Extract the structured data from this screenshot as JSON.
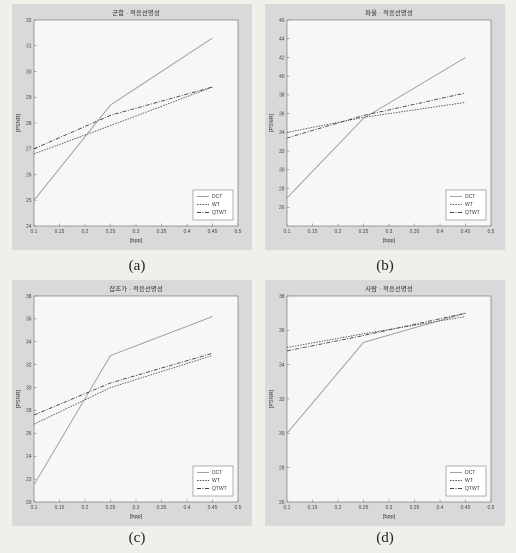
{
  "captions": [
    "(a)",
    "(b)",
    "(c)",
    "(d)"
  ],
  "chart_data": [
    {
      "type": "line",
      "title": "군함 · 적응선명성",
      "xlabel": "[bpp]",
      "ylabel": "[PSNR]",
      "xlim": [
        0.1,
        0.5
      ],
      "ylim": [
        24,
        32
      ],
      "xticks": [
        "0.1",
        "0.15",
        "0.2",
        "0.25",
        "0.3",
        "0.35",
        "0.4",
        "0.45",
        "0.5"
      ],
      "yticks": [
        "24",
        "25",
        "26",
        "27",
        "28",
        "29",
        "30",
        "31",
        "32"
      ],
      "x": [
        0.1,
        0.25,
        0.45
      ],
      "series": [
        {
          "name": "DCT",
          "values": [
            25.0,
            28.7,
            31.3
          ],
          "color": "#999999",
          "dash": "none"
        },
        {
          "name": "WT",
          "values": [
            26.8,
            27.9,
            29.4
          ],
          "color": "#555555",
          "dash": "1.5,1.2"
        },
        {
          "name": "QTWT",
          "values": [
            27.0,
            28.3,
            29.4
          ],
          "color": "#444444",
          "dash": "4,1.5,1,1.5"
        }
      ],
      "legend": "bottom-right"
    },
    {
      "type": "line",
      "title": "파울 · 적응선명성",
      "xlabel": "[bpp]",
      "ylabel": "[PSNR]",
      "xlim": [
        0.1,
        0.5
      ],
      "ylim": [
        24,
        46
      ],
      "xticks": [
        "0.1",
        "0.15",
        "0.2",
        "0.25",
        "0.3",
        "0.35",
        "0.4",
        "0.45",
        "0.5"
      ],
      "yticks": [
        "26",
        "28",
        "30",
        "32",
        "34",
        "36",
        "38",
        "40",
        "42",
        "44",
        "46"
      ],
      "x": [
        0.1,
        0.25,
        0.45
      ],
      "series": [
        {
          "name": "DCT",
          "values": [
            27.0,
            35.5,
            42.0
          ],
          "color": "#999999",
          "dash": "none"
        },
        {
          "name": "WT",
          "values": [
            34.0,
            35.6,
            37.2
          ],
          "color": "#555555",
          "dash": "1.5,1.2"
        },
        {
          "name": "QTWT",
          "values": [
            33.4,
            35.8,
            38.2
          ],
          "color": "#444444",
          "dash": "4,1.5,1,1.5"
        }
      ],
      "legend": "bottom-right"
    },
    {
      "type": "line",
      "title": "잡초가 · 적응선명성",
      "xlabel": "[bpp]",
      "ylabel": "[PSNR]",
      "xlim": [
        0.1,
        0.5
      ],
      "ylim": [
        20,
        38
      ],
      "xticks": [
        "0.1",
        "0.15",
        "0.2",
        "0.25",
        "0.3",
        "0.35",
        "0.4",
        "0.45",
        "0.5"
      ],
      "yticks": [
        "20",
        "22",
        "24",
        "26",
        "28",
        "30",
        "32",
        "34",
        "36",
        "38"
      ],
      "x": [
        0.1,
        0.25,
        0.45
      ],
      "series": [
        {
          "name": "DCT",
          "values": [
            21.5,
            32.8,
            36.2
          ],
          "color": "#999999",
          "dash": "none"
        },
        {
          "name": "WT",
          "values": [
            26.8,
            30.0,
            32.8
          ],
          "color": "#555555",
          "dash": "1.5,1.2"
        },
        {
          "name": "QTWT",
          "values": [
            27.6,
            30.4,
            33.0
          ],
          "color": "#444444",
          "dash": "4,1.5,1,1.5"
        }
      ],
      "legend": "bottom-right"
    },
    {
      "type": "line",
      "title": "사람 · 적응선명성",
      "xlabel": "[bpp]",
      "ylabel": "[PSNR]",
      "xlim": [
        0.1,
        0.5
      ],
      "ylim": [
        26,
        38
      ],
      "xticks": [
        "0.1",
        "0.15",
        "0.2",
        "0.25",
        "0.3",
        "0.35",
        "0.4",
        "0.45",
        "0.5"
      ],
      "yticks": [
        "26",
        "28",
        "30",
        "32",
        "34",
        "36",
        "38"
      ],
      "x": [
        0.1,
        0.25,
        0.45
      ],
      "series": [
        {
          "name": "DCT",
          "values": [
            30.0,
            35.3,
            37.0
          ],
          "color": "#999999",
          "dash": "none"
        },
        {
          "name": "WT",
          "values": [
            35.0,
            35.8,
            36.8
          ],
          "color": "#555555",
          "dash": "1.5,1.2"
        },
        {
          "name": "QTWT",
          "values": [
            34.8,
            35.7,
            37.0
          ],
          "color": "#444444",
          "dash": "4,1.5,1,1.5"
        }
      ],
      "legend": "bottom-right"
    }
  ]
}
